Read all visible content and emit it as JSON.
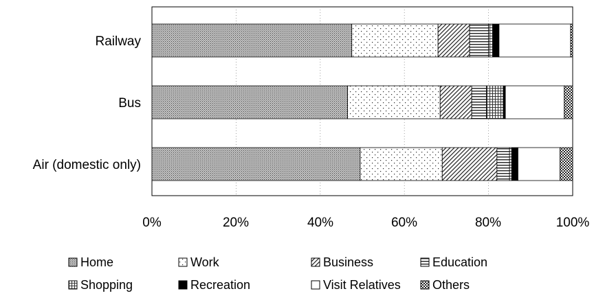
{
  "chart_data": {
    "type": "bar",
    "orientation": "horizontal",
    "stacked": "percent",
    "title": "",
    "xlabel": "",
    "ylabel": "",
    "xlim": [
      0,
      100
    ],
    "x_ticks": [
      "0%",
      "20%",
      "40%",
      "60%",
      "80%",
      "100%"
    ],
    "grid": true,
    "legend_position": "bottom",
    "categories": [
      "Railway",
      "Bus",
      "Air (domestic only)"
    ],
    "series": [
      {
        "name": "Home",
        "values": [
          47.5,
          46.5,
          49.5
        ],
        "pattern": "dense-dots",
        "color": "#9a9a9a"
      },
      {
        "name": "Work",
        "values": [
          20.5,
          22.0,
          19.5
        ],
        "pattern": "sparse-dots",
        "color": "#ffffff"
      },
      {
        "name": "Business",
        "values": [
          7.5,
          7.5,
          13.0
        ],
        "pattern": "diagonal",
        "color": "#555555"
      },
      {
        "name": "Education",
        "values": [
          4.5,
          3.5,
          3.0
        ],
        "pattern": "horizontal",
        "color": "#333333"
      },
      {
        "name": "Shopping",
        "values": [
          1.0,
          4.0,
          0.5
        ],
        "pattern": "small-grid",
        "color": "#777777"
      },
      {
        "name": "Recreation",
        "values": [
          1.5,
          0.5,
          1.5
        ],
        "pattern": "solid",
        "color": "#000000"
      },
      {
        "name": "Visit Relatives",
        "values": [
          17.0,
          14.0,
          10.0
        ],
        "pattern": "none",
        "color": "#ffffff"
      },
      {
        "name": "Others",
        "values": [
          0.5,
          2.0,
          3.0
        ],
        "pattern": "checker",
        "color": "#444444"
      }
    ]
  }
}
